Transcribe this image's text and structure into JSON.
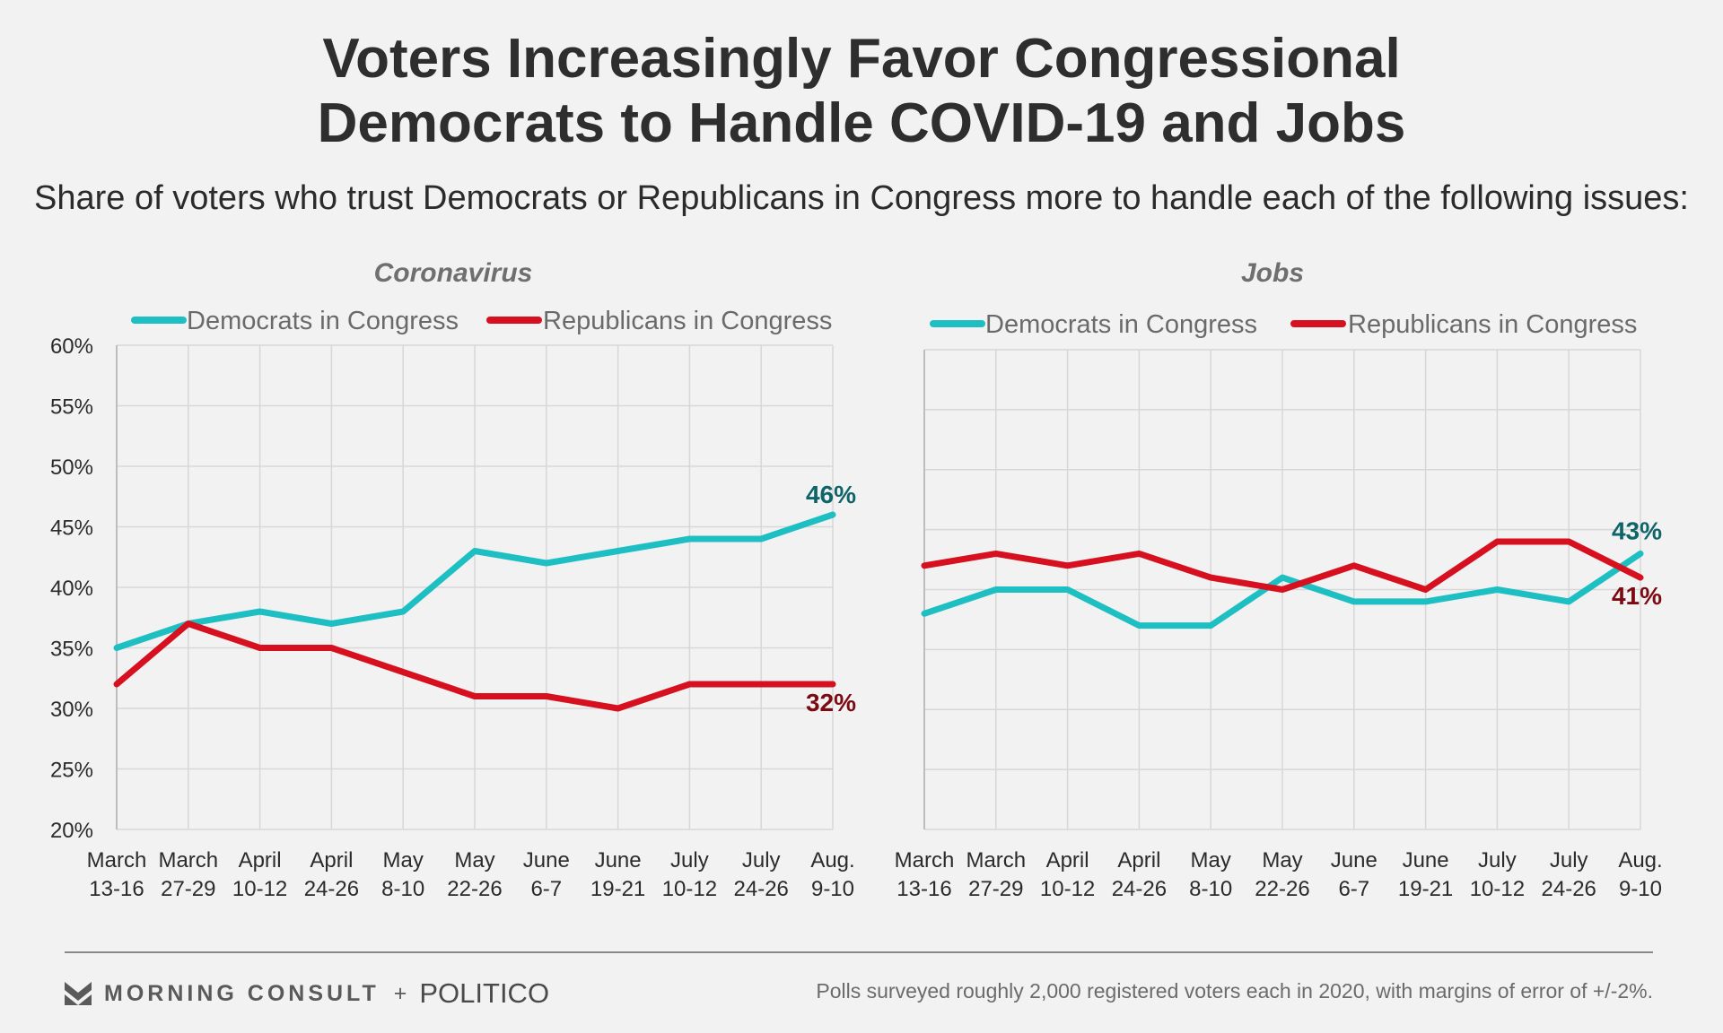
{
  "title_line1": "Voters Increasingly Favor Congressional",
  "title_line2": "Democrats to Handle COVID-19 and Jobs",
  "subtitle": "Share of voters who trust Democrats or Republicans in Congress more to handle each of the following issues:",
  "footer": {
    "brand_morning_consult": "MORNING CONSULT",
    "plus": "+",
    "brand_politico": "POLITICO",
    "note": "Polls surveyed roughly 2,000 registered voters each in 2020, with margins of error of +/-2%."
  },
  "colors": {
    "democrats": "#1ebfc3",
    "republicans": "#d7101f",
    "dem_label": "#0e6469",
    "rep_label": "#7d0a12",
    "grid": "#d7d7d7"
  },
  "chart_data": [
    {
      "type": "line",
      "title": "Coronavirus",
      "categories": [
        [
          "March",
          "13-16"
        ],
        [
          "March",
          "27-29"
        ],
        [
          "April",
          "10-12"
        ],
        [
          "April",
          "24-26"
        ],
        [
          "May",
          "8-10"
        ],
        [
          "May",
          "22-26"
        ],
        [
          "June",
          "6-7"
        ],
        [
          "June",
          "19-21"
        ],
        [
          "July",
          "10-12"
        ],
        [
          "July",
          "24-26"
        ],
        [
          "Aug.",
          "9-10"
        ]
      ],
      "ylim": [
        20,
        60
      ],
      "yticks": [
        "20%",
        "25%",
        "30%",
        "35%",
        "40%",
        "45%",
        "50%",
        "55%",
        "60%"
      ],
      "show_y_labels": true,
      "grid": true,
      "legend_position": "top",
      "series": [
        {
          "name": "Democrats in Congress",
          "values": [
            35,
            37,
            38,
            37,
            38,
            43,
            42,
            43,
            44,
            44,
            46
          ],
          "end_label": "46%"
        },
        {
          "name": "Republicans in Congress",
          "values": [
            32,
            37,
            35,
            35,
            33,
            31,
            31,
            30,
            32,
            32,
            32
          ],
          "end_label": "32%"
        }
      ]
    },
    {
      "type": "line",
      "title": "Jobs",
      "categories": [
        [
          "March",
          "13-16"
        ],
        [
          "March",
          "27-29"
        ],
        [
          "April",
          "10-12"
        ],
        [
          "April",
          "24-26"
        ],
        [
          "May",
          "8-10"
        ],
        [
          "May",
          "22-26"
        ],
        [
          "June",
          "6-7"
        ],
        [
          "June",
          "19-21"
        ],
        [
          "July",
          "10-12"
        ],
        [
          "July",
          "24-26"
        ],
        [
          "Aug.",
          "9-10"
        ]
      ],
      "ylim": [
        20,
        60
      ],
      "yticks": [
        "20%",
        "25%",
        "30%",
        "35%",
        "40%",
        "45%",
        "50%",
        "55%",
        "60%"
      ],
      "show_y_labels": false,
      "grid": true,
      "legend_position": "top",
      "series": [
        {
          "name": "Democrats in Congress",
          "values": [
            38,
            40,
            40,
            37,
            37,
            41,
            39,
            39,
            40,
            39,
            43
          ],
          "end_label": "43%"
        },
        {
          "name": "Republicans in Congress",
          "values": [
            42,
            43,
            42,
            43,
            41,
            40,
            42,
            40,
            44,
            44,
            41
          ],
          "end_label": "41%"
        }
      ]
    }
  ]
}
